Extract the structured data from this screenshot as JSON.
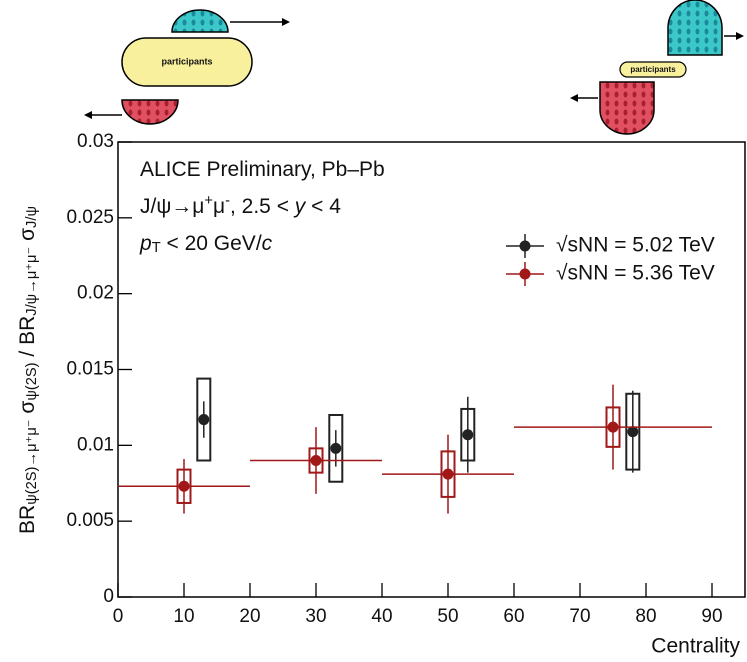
{
  "illustrations": [
    {
      "label": "participants"
    },
    {
      "label": "participants"
    }
  ],
  "chart_data": {
    "type": "errorbar",
    "annotations": [
      [
        {
          "text": "ALICE Preliminary, Pb–Pb"
        }
      ],
      [
        {
          "text": "J/ψ→μ"
        },
        {
          "text": "+",
          "sup": true
        },
        {
          "text": "μ"
        },
        {
          "text": "-",
          "sup": true
        },
        {
          "text": ", 2.5 <  "
        },
        {
          "text": "y",
          "italic": true
        },
        {
          "text": " < 4"
        }
      ],
      [
        {
          "text": "p",
          "italic": true
        },
        {
          "text": "T",
          "sub": true
        },
        {
          "text": " < 20 GeV/"
        },
        {
          "text": "c",
          "italic": true
        }
      ]
    ],
    "ylabel": [
      {
        "text": "BR"
      },
      {
        "text": "ψ(2S)→μ⁺μ⁻",
        "sub": true
      },
      {
        "text": " σ"
      },
      {
        "text": "ψ(2S)",
        "sub": true
      },
      {
        "text": " / BR"
      },
      {
        "text": "J/ψ→μ⁺μ⁻",
        "sub": true
      },
      {
        "text": " σ"
      },
      {
        "text": "J/ψ",
        "sub": true
      }
    ],
    "xlabel": "Centrality",
    "xlim": [
      0,
      95
    ],
    "ylim": [
      0,
      0.03
    ],
    "xticks": [
      0,
      10,
      20,
      30,
      40,
      50,
      60,
      70,
      80,
      90
    ],
    "yticks": [
      0,
      0.005,
      0.01,
      0.015,
      0.02,
      0.025,
      0.03
    ],
    "series": [
      {
        "name": "√sNN = 5.02 TeV",
        "color": "#222222",
        "x": [
          13,
          33,
          53,
          78
        ],
        "values": [
          0.0117,
          0.0098,
          0.0107,
          0.0109
        ],
        "stat_err": [
          0.0012,
          0.0012,
          0.0025,
          0.0027
        ],
        "syst_err": [
          0.0027,
          0.0022,
          0.0017,
          0.0025
        ]
      },
      {
        "name": "√sNN = 5.36 TeV",
        "color": "#a01818",
        "x": [
          10,
          30,
          50,
          75
        ],
        "values": [
          0.0073,
          0.009,
          0.0081,
          0.0112
        ],
        "stat_err": [
          0.0018,
          0.0022,
          0.0026,
          0.0028
        ],
        "syst_err": [
          0.0011,
          0.0008,
          0.0015,
          0.0013
        ],
        "x_low": [
          0,
          20,
          40,
          60
        ],
        "x_high": [
          20,
          40,
          60,
          90
        ]
      }
    ]
  }
}
